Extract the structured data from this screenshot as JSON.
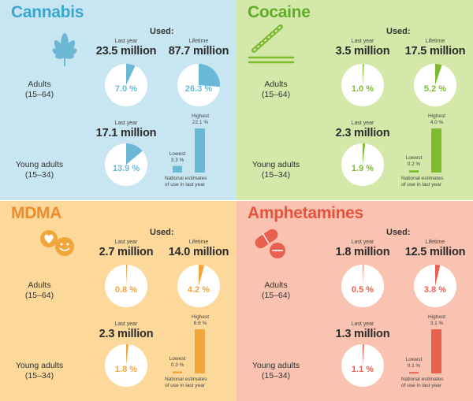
{
  "chart_data": [
    {
      "type": "pie",
      "title": "Cannabis",
      "colors": {
        "bg": "#c8e6f1",
        "accent": "#6bb8d6",
        "title": "#3aa6cf"
      },
      "icon": "cannabis-leaf-icon",
      "used_label": "Used:",
      "adults": {
        "label_line1": "Adults",
        "label_line2": "(15–64)",
        "last_year": {
          "label": "Last year",
          "value": "23.5 million",
          "pct": 7.0,
          "pct_label": "7.0 %"
        },
        "lifetime": {
          "label": "Lifetime",
          "value": "87.7 million",
          "pct": 26.3,
          "pct_label": "26.3 %"
        }
      },
      "young": {
        "label_line1": "Young adults",
        "label_line2": "(15–34)",
        "last_year": {
          "label": "Last year",
          "value": "17.1 million",
          "pct": 13.9,
          "pct_label": "13.9 %"
        },
        "range": {
          "lowest_label": "Lowest",
          "lowest_value": "3.3 %",
          "lowest": 3.3,
          "highest_label": "Highest",
          "highest_value": "22.1 %",
          "highest": 22.1
        },
        "note_line1": "National estimates",
        "note_line2": "of use in last year"
      }
    },
    {
      "type": "pie",
      "title": "Cocaine",
      "colors": {
        "bg": "#d3e8a9",
        "accent": "#7fbb2f",
        "title": "#62aa2a"
      },
      "icon": "cocaine-lines-icon",
      "used_label": "Used:",
      "adults": {
        "label_line1": "Adults",
        "label_line2": "(15–64)",
        "last_year": {
          "label": "Last year",
          "value": "3.5 million",
          "pct": 1.0,
          "pct_label": "1.0 %"
        },
        "lifetime": {
          "label": "Lifetime",
          "value": "17.5 million",
          "pct": 5.2,
          "pct_label": "5.2 %"
        }
      },
      "young": {
        "label_line1": "Young adults",
        "label_line2": "(15–34)",
        "last_year": {
          "label": "Last year",
          "value": "2.3 million",
          "pct": 1.9,
          "pct_label": "1.9 %"
        },
        "range": {
          "lowest_label": "Lowest",
          "lowest_value": "0.2 %",
          "lowest": 0.2,
          "highest_label": "Highest",
          "highest_value": "4.0 %",
          "highest": 4.0
        },
        "note_line1": "National estimates",
        "note_line2": "of use in last year"
      }
    },
    {
      "type": "pie",
      "title": "MDMA",
      "colors": {
        "bg": "#fcd89a",
        "accent": "#f2a53a",
        "title": "#ef8b29"
      },
      "icon": "mdma-pills-icon",
      "used_label": "Used:",
      "adults": {
        "label_line1": "Adults",
        "label_line2": "(15–64)",
        "last_year": {
          "label": "Last year",
          "value": "2.7 million",
          "pct": 0.8,
          "pct_label": "0.8 %"
        },
        "lifetime": {
          "label": "Lifetime",
          "value": "14.0 million",
          "pct": 4.2,
          "pct_label": "4.2 %"
        }
      },
      "young": {
        "label_line1": "Young adults",
        "label_line2": "(15–34)",
        "last_year": {
          "label": "Last year",
          "value": "2.3 million",
          "pct": 1.8,
          "pct_label": "1.8 %"
        },
        "range": {
          "lowest_label": "Lowest",
          "lowest_value": "0.3 %",
          "lowest": 0.3,
          "highest_label": "Highest",
          "highest_value": "6.6 %",
          "highest": 6.6
        },
        "note_line1": "National estimates",
        "note_line2": "of use in last year"
      }
    },
    {
      "type": "pie",
      "title": "Amphetamines",
      "colors": {
        "bg": "#f9c2b1",
        "accent": "#e8604e",
        "title": "#e5533f"
      },
      "icon": "amphetamine-pills-icon",
      "used_label": "Used:",
      "adults": {
        "label_line1": "Adults",
        "label_line2": "(15–64)",
        "last_year": {
          "label": "Last year",
          "value": "1.8 million",
          "pct": 0.5,
          "pct_label": "0.5 %"
        },
        "lifetime": {
          "label": "Lifetime",
          "value": "12.5 million",
          "pct": 3.8,
          "pct_label": "3.8 %"
        }
      },
      "young": {
        "label_line1": "Young adults",
        "label_line2": "(15–34)",
        "last_year": {
          "label": "Last year",
          "value": "1.3 million",
          "pct": 1.1,
          "pct_label": "1.1 %"
        },
        "range": {
          "lowest_label": "Lowest",
          "lowest_value": "0.1 %",
          "lowest": 0.1,
          "highest_label": "Highest",
          "highest_value": "3.1 %",
          "highest": 3.1
        },
        "note_line1": "National estimates",
        "note_line2": "of use in last year"
      }
    }
  ]
}
